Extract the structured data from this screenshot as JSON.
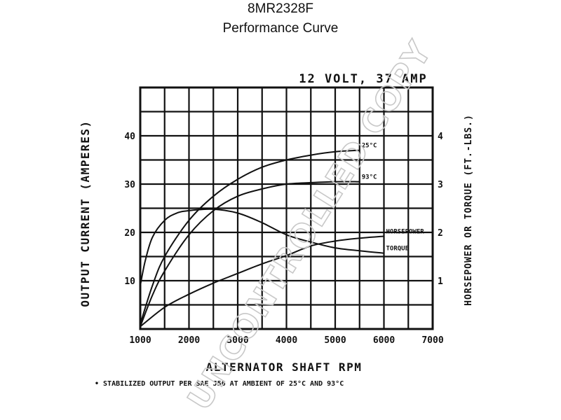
{
  "header": {
    "model": "8MR2328F",
    "subtitle": "Performance Curve"
  },
  "watermark": "UNCONTROLLED COPY",
  "footnote": "• STABILIZED OUTPUT PER SAE J56 AT AMBIENT OF 25°C AND 93°C",
  "chart_data": {
    "type": "line",
    "title": "12 VOLT, 37 AMP",
    "xlabel": "ALTERNATOR SHAFT RPM",
    "ylabel": "OUTPUT CURRENT (AMPERES)",
    "y2label": "HORSEPOWER OR TORQUE (FT.-LBS.)",
    "xlim": [
      1000,
      7000
    ],
    "ylim": [
      0,
      50
    ],
    "y2lim": [
      0,
      5
    ],
    "x_ticks": [
      1000,
      2000,
      3000,
      4000,
      5000,
      6000,
      7000
    ],
    "x_tick_labels": [
      "1000",
      "2000",
      "3000",
      "4000",
      "5000",
      "6000",
      "7000"
    ],
    "y_ticks": [
      10,
      20,
      30,
      40
    ],
    "y_tick_labels": [
      "10",
      "20",
      "30",
      "40"
    ],
    "y2_ticks": [
      1,
      2,
      3,
      4
    ],
    "y2_tick_labels": [
      "1",
      "2",
      "3",
      "4"
    ],
    "grid": true,
    "series": [
      {
        "name": "25°C",
        "axis": "left",
        "x": [
          1000,
          1250,
          1500,
          2000,
          2500,
          3000,
          3500,
          4000,
          4500,
          5000,
          5500
        ],
        "y": [
          1,
          9,
          15,
          22.5,
          27.5,
          31,
          33.5,
          35,
          36,
          36.7,
          37
        ]
      },
      {
        "name": "93°C",
        "axis": "left",
        "x": [
          1000,
          1250,
          1500,
          2000,
          2500,
          3000,
          3500,
          4000,
          4500,
          5000,
          5500
        ],
        "y": [
          0.5,
          7,
          12,
          19.5,
          24.5,
          27.5,
          29,
          30,
          30.3,
          30.5,
          30.5
        ]
      },
      {
        "name": "HORSEPOWER",
        "axis": "right",
        "x": [
          1000,
          1500,
          2000,
          2500,
          3000,
          3500,
          4000,
          4500,
          5000,
          5500,
          6000
        ],
        "y": [
          0.05,
          0.45,
          0.72,
          0.95,
          1.15,
          1.35,
          1.52,
          1.72,
          1.82,
          1.88,
          1.92
        ]
      },
      {
        "name": "TORQUE",
        "axis": "right",
        "x": [
          1000,
          1100,
          1250,
          1500,
          1750,
          2000,
          2500,
          3000,
          3500,
          4000,
          4500,
          5000,
          5500,
          6000
        ],
        "y": [
          0.9,
          1.4,
          1.9,
          2.25,
          2.4,
          2.45,
          2.48,
          2.4,
          2.2,
          1.95,
          1.8,
          1.68,
          1.62,
          1.57
        ]
      }
    ]
  }
}
